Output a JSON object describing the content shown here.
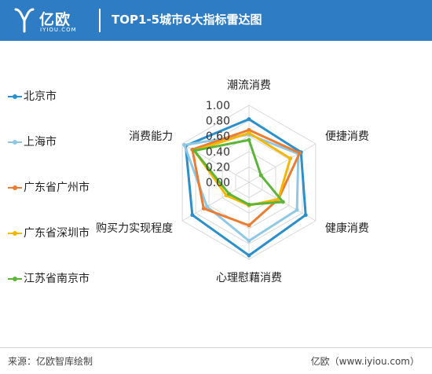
{
  "header": {
    "logo_cn": "亿欧",
    "logo_en": "IYIOU.COM",
    "title": "TOP1-5城市6大指标雷达图"
  },
  "footer": {
    "source": "来源：亿欧智库绘制",
    "credit": "亿欧（www.iyiou.com）"
  },
  "chart_data": {
    "type": "radar",
    "title": "TOP1-5城市6大指标雷达图",
    "axes": [
      "潮流消费",
      "便捷消费",
      "健康消费",
      "心理慰藉消费",
      "购买力实现程度",
      "消费能力"
    ],
    "scale_ticks": [
      "1.00",
      "0.80",
      "0.60",
      "0.40",
      "0.20",
      "0.00"
    ],
    "range": [
      0,
      1
    ],
    "legend_position": "left",
    "series": [
      {
        "name": "北京市",
        "color": "#2a8fca",
        "values": [
          0.82,
          0.78,
          0.85,
          0.95,
          0.85,
          0.95
        ]
      },
      {
        "name": "上海市",
        "color": "#8fc8e6",
        "values": [
          0.62,
          0.74,
          0.72,
          0.76,
          0.63,
          0.97
        ]
      },
      {
        "name": "广东省广州市",
        "color": "#ec7c30",
        "values": [
          0.68,
          0.76,
          0.44,
          0.56,
          0.68,
          0.85
        ]
      },
      {
        "name": "广东省深圳市",
        "color": "#f5b800",
        "values": [
          0.64,
          0.62,
          0.44,
          0.3,
          0.34,
          0.82
        ]
      },
      {
        "name": "江苏省南京市",
        "color": "#5cb539",
        "values": [
          0.55,
          0.18,
          0.51,
          0.29,
          0.3,
          0.82
        ]
      }
    ]
  }
}
